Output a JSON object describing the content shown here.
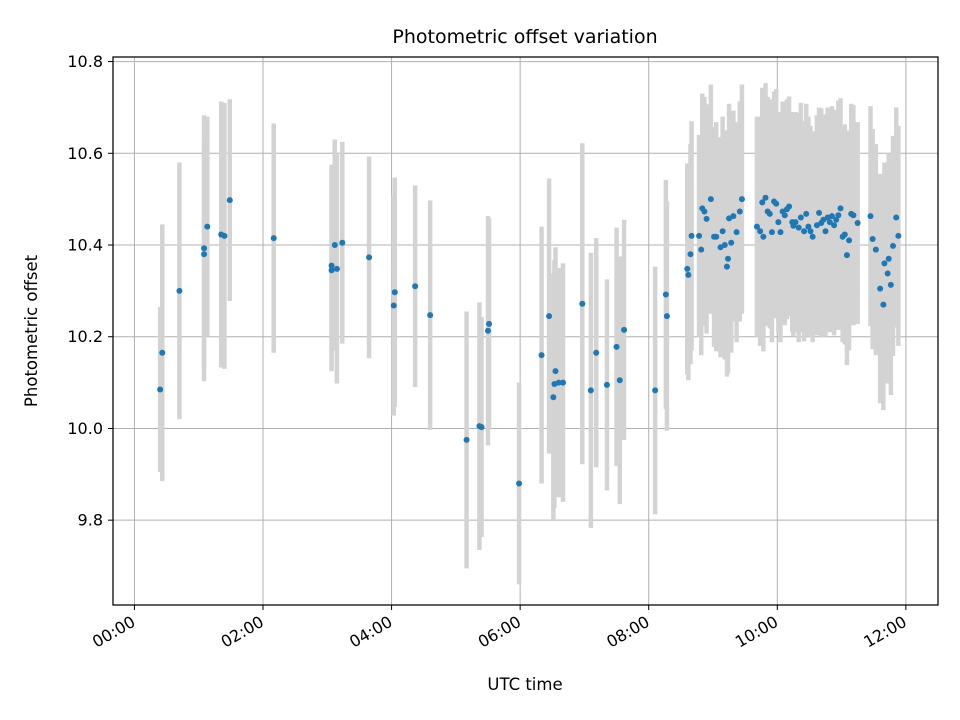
{
  "chart_data": {
    "type": "scatter",
    "title": "Photometric offset variation",
    "xlabel": "UTC time",
    "ylabel": "Photometric offset",
    "xlim": [
      "23:40",
      "12:30"
    ],
    "ylim": [
      9.615,
      10.81
    ],
    "x_ticks": [
      "00:00",
      "02:00",
      "04:00",
      "06:00",
      "08:00",
      "10:00",
      "12:00"
    ],
    "y_ticks": [
      9.8,
      10.0,
      10.2,
      10.4,
      10.6,
      10.8
    ],
    "y_tick_labels": [
      "9.8",
      "10.0",
      "10.2",
      "10.4",
      "10.6",
      "10.8"
    ],
    "grid": true,
    "colors": {
      "points": "#1f77b4",
      "errorbars": "#d3d3d3",
      "grid": "#b0b0b0"
    },
    "series": [
      {
        "x": [
          "00:24",
          "00:26",
          "00:42",
          "01:05",
          "01:05",
          "01:08",
          "01:21",
          "01:24",
          "01:29",
          "02:10",
          "03:04",
          "03:04",
          "03:07",
          "03:09",
          "03:14",
          "03:39",
          "04:02",
          "04:03",
          "04:22",
          "04:36",
          "05:10",
          "05:22",
          "05:24",
          "05:30",
          "05:31",
          "05:59",
          "06:20",
          "06:27",
          "06:31",
          "06:32",
          "06:33",
          "06:36",
          "06:40",
          "06:58",
          "07:06",
          "07:11",
          "07:21",
          "07:30",
          "07:33",
          "07:37",
          "08:06",
          "08:16",
          "08:17",
          "08:36",
          "08:37",
          "08:39",
          "08:40",
          "08:47",
          "08:49",
          "08:50",
          "08:52",
          "08:54",
          "08:58",
          "09:01",
          "09:03",
          "09:07",
          "09:09",
          "09:11",
          "09:13",
          "09:14",
          "09:15",
          "09:17",
          "09:19",
          "09:22",
          "09:25",
          "09:27",
          "09:41",
          "09:44",
          "09:46",
          "09:47",
          "09:49",
          "09:51",
          "09:53",
          "09:55",
          "09:57",
          "09:59",
          "10:01",
          "10:03",
          "10:05",
          "10:07",
          "10:09",
          "10:11",
          "10:14",
          "10:15",
          "10:17",
          "10:20",
          "10:22",
          "10:25",
          "10:27",
          "10:29",
          "10:31",
          "10:33",
          "10:37",
          "10:39",
          "10:41",
          "10:43",
          "10:45",
          "10:47",
          "10:49",
          "10:51",
          "10:53",
          "10:55",
          "10:57",
          "10:59",
          "11:01",
          "11:03",
          "11:05",
          "11:07",
          "11:09",
          "11:11",
          "11:15",
          "11:27",
          "11:29",
          "11:32",
          "11:36",
          "11:39",
          "11:40",
          "11:43",
          "11:44",
          "11:46",
          "11:48",
          "11:51",
          "11:53"
        ],
        "y": [
          10.085,
          10.165,
          10.3,
          10.38,
          10.393,
          10.44,
          10.423,
          10.42,
          10.498,
          10.415,
          10.355,
          10.345,
          10.4,
          10.348,
          10.405,
          10.373,
          10.268,
          10.297,
          10.31,
          10.247,
          9.975,
          10.005,
          10.003,
          10.213,
          10.228,
          9.88,
          10.16,
          10.245,
          10.068,
          10.097,
          10.125,
          10.1,
          10.1,
          10.272,
          10.083,
          10.165,
          10.095,
          10.178,
          10.105,
          10.215,
          10.083,
          10.292,
          10.245,
          10.348,
          10.335,
          10.38,
          10.42,
          10.42,
          10.39,
          10.48,
          10.473,
          10.457,
          10.5,
          10.418,
          10.418,
          10.395,
          10.43,
          10.4,
          10.353,
          10.37,
          10.458,
          10.405,
          10.463,
          10.428,
          10.473,
          10.5,
          10.44,
          10.43,
          10.493,
          10.418,
          10.503,
          10.473,
          10.468,
          10.428,
          10.495,
          10.49,
          10.45,
          10.428,
          10.473,
          10.465,
          10.478,
          10.484,
          10.45,
          10.442,
          10.45,
          10.438,
          10.46,
          10.43,
          10.468,
          10.44,
          10.43,
          10.418,
          10.443,
          10.47,
          10.448,
          10.455,
          10.43,
          10.46,
          10.45,
          10.463,
          10.443,
          10.455,
          10.465,
          10.48,
          10.418,
          10.423,
          10.378,
          10.41,
          10.468,
          10.465,
          10.448,
          10.463,
          10.413,
          10.39,
          10.305,
          10.27,
          10.36,
          10.338,
          10.37,
          10.313,
          10.398,
          10.46,
          10.42
        ],
        "yerr": [
          0.18,
          0.28,
          0.28,
          0.25,
          0.29,
          0.24,
          0.29,
          0.29,
          0.22,
          0.25,
          0.22,
          0.22,
          0.23,
          0.25,
          0.22,
          0.22,
          0.24,
          0.25,
          0.22,
          0.25,
          0.28,
          0.27,
          0.24,
          0.25,
          0.23,
          0.22,
          0.28,
          0.3,
          0.27,
          0.27,
          0.27,
          0.25,
          0.26,
          0.35,
          0.3,
          0.25,
          0.23,
          0.26,
          0.27,
          0.24,
          0.27,
          0.25,
          0.25,
          0.23,
          0.23,
          0.24,
          0.25,
          0.22,
          0.23,
          0.25,
          0.25,
          0.25,
          0.25,
          0.24,
          0.25,
          0.24,
          0.25,
          0.25,
          0.24,
          0.25,
          0.25,
          0.24,
          0.23,
          0.24,
          0.24,
          0.25,
          0.24,
          0.25,
          0.25,
          0.25,
          0.25,
          0.25,
          0.25,
          0.24,
          0.24,
          0.25,
          0.24,
          0.24,
          0.24,
          0.24,
          0.24,
          0.24,
          0.24,
          0.24,
          0.24,
          0.25,
          0.25,
          0.24,
          0.24,
          0.24,
          0.23,
          0.23,
          0.24,
          0.23,
          0.25,
          0.23,
          0.23,
          0.24,
          0.24,
          0.24,
          0.24,
          0.24,
          0.25,
          0.24,
          0.23,
          0.24,
          0.24,
          0.24,
          0.24,
          0.24,
          0.22,
          0.24,
          0.24,
          0.23,
          0.25,
          0.23,
          0.22,
          0.24,
          0.23,
          0.24,
          0.24,
          0.24,
          0.24
        ]
      }
    ]
  }
}
